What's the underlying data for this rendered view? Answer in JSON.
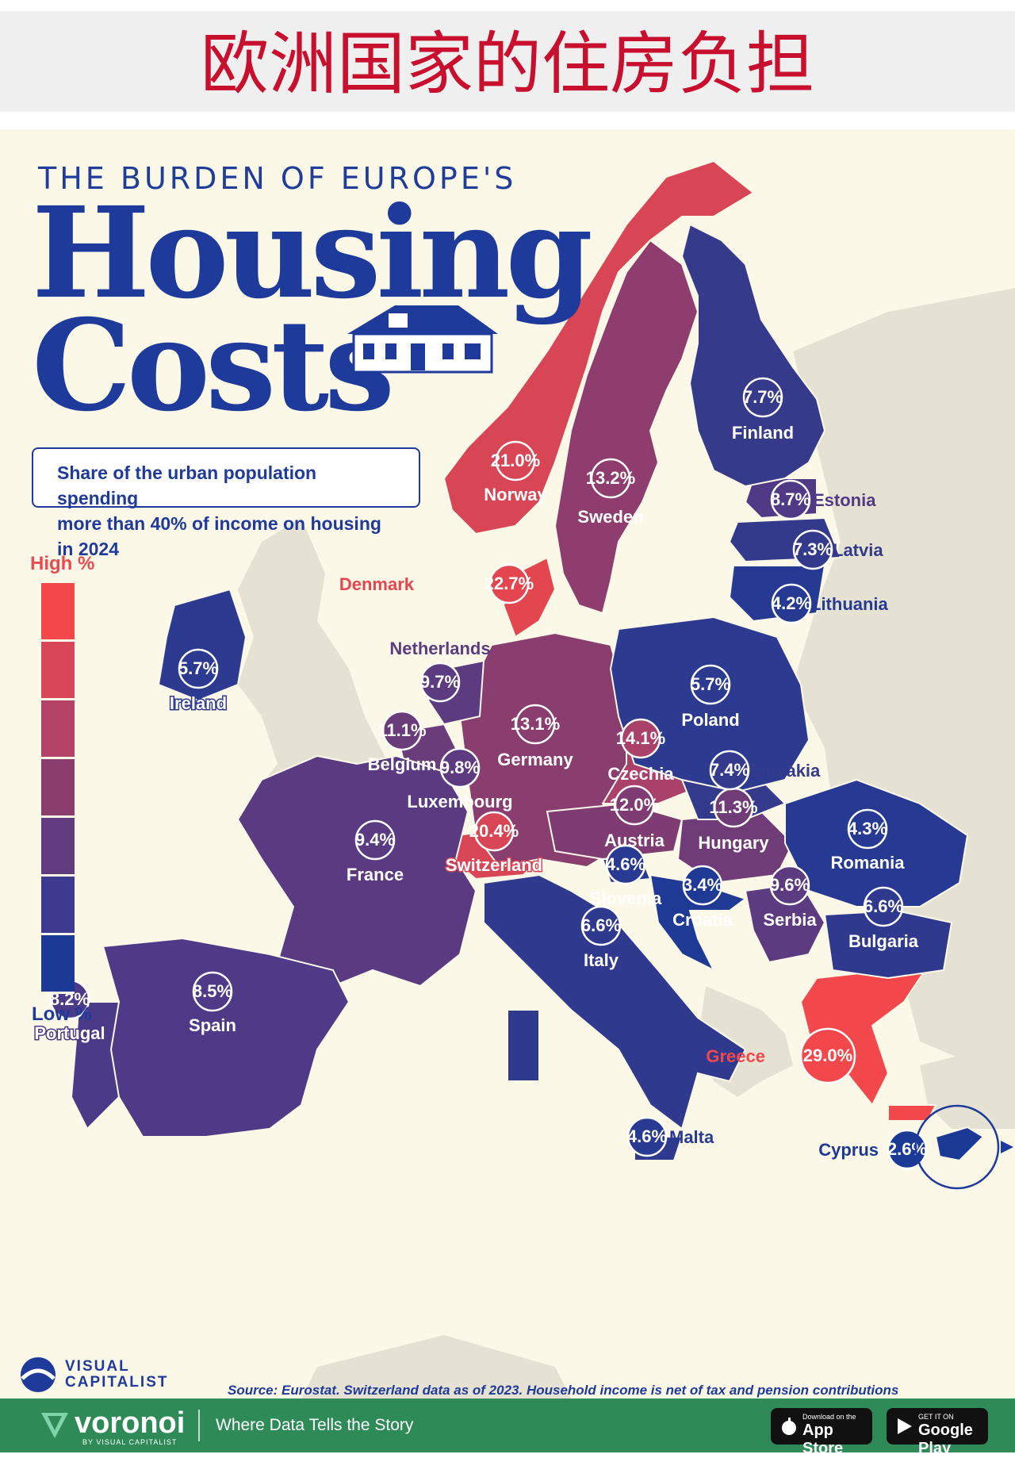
{
  "banner": {
    "title": "欧洲国家的住房负担"
  },
  "header": {
    "kicker": "THE BURDEN OF EUROPE'S",
    "title_line1": "Housing",
    "title_line2": "Costs"
  },
  "subtitle": {
    "line1": "Share of the urban population spending",
    "line2": "more than 40% of income on housing in 2024"
  },
  "legend": {
    "high_label": "High %",
    "low_label": "Low %",
    "colors": [
      "#f2484b",
      "#d94558",
      "#b44266",
      "#8b3d6e",
      "#613b80",
      "#3d3a8f",
      "#1b3a96"
    ]
  },
  "colors": {
    "background": "#fbf8e8",
    "land_other": "#e6e2d3",
    "banner_title": "#c8102e",
    "brand_blue": "#1e3a9a",
    "footer_green": "#2e8b57"
  },
  "countries": [
    {
      "name": "Greece",
      "value": "29.0%",
      "pct": 29.0,
      "color": "#f2484b"
    },
    {
      "name": "Denmark",
      "value": "22.7%",
      "pct": 22.7,
      "color": "#e4464f"
    },
    {
      "name": "Norway",
      "value": "21.0%",
      "pct": 21.0,
      "color": "#d84656"
    },
    {
      "name": "Switzerland",
      "value": "20.4%",
      "pct": 20.4,
      "color": "#d84656"
    },
    {
      "name": "Czechia",
      "value": "14.1%",
      "pct": 14.1,
      "color": "#a9416a"
    },
    {
      "name": "Sweden",
      "value": "13.2%",
      "pct": 13.2,
      "color": "#8e3d6e"
    },
    {
      "name": "Germany",
      "value": "13.1%",
      "pct": 13.1,
      "color": "#8a3d6f"
    },
    {
      "name": "Austria",
      "value": "12.0%",
      "pct": 12.0,
      "color": "#7f3c73"
    },
    {
      "name": "Hungary",
      "value": "11.3%",
      "pct": 11.3,
      "color": "#703c78"
    },
    {
      "name": "Belgium",
      "value": "11.1%",
      "pct": 11.1,
      "color": "#6b3c7a"
    },
    {
      "name": "Luxembourg",
      "value": "9.8%",
      "pct": 9.8,
      "color": "#5e3b80"
    },
    {
      "name": "Netherlands",
      "value": "9.7%",
      "pct": 9.7,
      "color": "#5d3b80"
    },
    {
      "name": "Serbia",
      "value": "9.6%",
      "pct": 9.6,
      "color": "#5c3b81"
    },
    {
      "name": "France",
      "value": "9.4%",
      "pct": 9.4,
      "color": "#5a3b82"
    },
    {
      "name": "Estonia",
      "value": "8.7%",
      "pct": 8.7,
      "color": "#503a86"
    },
    {
      "name": "Spain",
      "value": "8.5%",
      "pct": 8.5,
      "color": "#4e3a87"
    },
    {
      "name": "Portugal",
      "value": "8.2%",
      "pct": 8.2,
      "color": "#4b3a88"
    },
    {
      "name": "Finland",
      "value": "7.7%",
      "pct": 7.7,
      "color": "#363a8b"
    },
    {
      "name": "Slovakia",
      "value": "7.4%",
      "pct": 7.4,
      "color": "#343a8c"
    },
    {
      "name": "Latvia",
      "value": "7.3%",
      "pct": 7.3,
      "color": "#333a8c"
    },
    {
      "name": "Italy",
      "value": "6.6%",
      "pct": 6.6,
      "color": "#2f3a8e"
    },
    {
      "name": "Bulgaria",
      "value": "6.6%",
      "pct": 6.6,
      "color": "#2f3a8e"
    },
    {
      "name": "Ireland",
      "value": "5.7%",
      "pct": 5.7,
      "color": "#2c3a90"
    },
    {
      "name": "Poland",
      "value": "5.7%",
      "pct": 5.7,
      "color": "#2c3a90"
    },
    {
      "name": "Slovenia",
      "value": "4.6%",
      "pct": 4.6,
      "color": "#283a92"
    },
    {
      "name": "Malta",
      "value": "4.6%",
      "pct": 4.6,
      "color": "#283a92"
    },
    {
      "name": "Romania",
      "value": "4.3%",
      "pct": 4.3,
      "color": "#273a93"
    },
    {
      "name": "Lithuania",
      "value": "4.2%",
      "pct": 4.2,
      "color": "#263a93"
    },
    {
      "name": "Croatia",
      "value": "3.4%",
      "pct": 3.4,
      "color": "#1f3a95"
    },
    {
      "name": "Cyprus",
      "value": "2.6%",
      "pct": 2.6,
      "color": "#1b3a96"
    }
  ],
  "source": "Source: Eurostat. Switzerland data as of 2023. Household income is net of tax and pension contributions",
  "brand": {
    "logo_line1": "VISUAL",
    "logo_line2": "CAPITALIST"
  },
  "footer": {
    "brand": "voronoi",
    "brand_sub": "BY VISUAL CAPITALIST",
    "tagline": "Where Data Tells the Story",
    "app_store_small": "Download on the",
    "app_store_big": "App Store",
    "google_small": "GET IT ON",
    "google_big": "Google Play"
  }
}
